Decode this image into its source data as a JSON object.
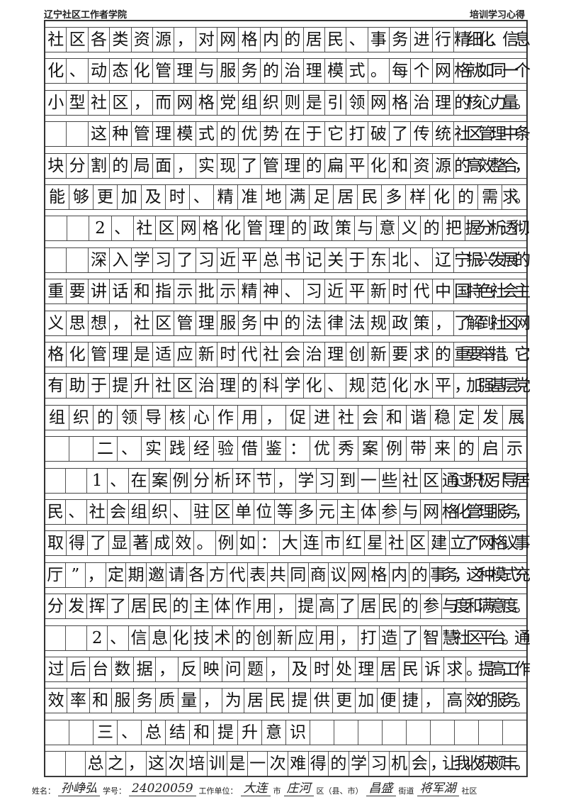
{
  "header": {
    "left": "辽宁社区工作者学院",
    "right": "培训学习心得"
  },
  "lines": [
    "社区各类资源，对网格内的居民、事务进行精细化、信息",
    "化、动态化管理与服务的治理模式。每个网格就如同一个",
    "小型社区，而网格党组织则是引领网格治理的核心力量。",
    "　　这种管理模式的优势在于它打破了传统社区管理中条",
    "块分割的局面，实现了管理的扁平化和资源的高效整合，",
    "能够更加及时、精准地满足居民多样化的需求。",
    "　　2、社区网格化管理的政策与意义的把握分析透彻.",
    "　　深入学习了习近平总书记关于东北、辽宁振兴发展的",
    "重要讲话和指示批示精神、习近平新时代中国特色社会主",
    "义思想，社区管理服务中的法律法规政策，了解到社区网",
    "格化管理是适应新时代社会治理创新要求的重要举措。它",
    "有助于提升社区治理的科学化、规范化水平，加强基层党",
    "组织的领导核心作用，促进社会和谐稳定发展.",
    "　　二、实践经验借鉴：优秀案例带来的启示",
    "　　1、在案例分析环节，学习到一些社区通过积极引导居",
    "民、社会组织、驻区单位等多元主体参与网格化管理服务，",
    "取得了显著成效。例如：大连市红星社区建立了“网格议事",
    "厅”，定期邀请各方代表共同商议网格内的事务，这种模式充",
    "分发挥了居民的主体作用，提高了居民的参与度和满意度。",
    "　　2、信息化技术的创新应用，打造了智慧社区平台。通",
    "过后台数据，反映问题，及时处理居民诉求。提高工作",
    "效率和服务质量，为居民提供更加便捷，高效的服务。",
    "　　三、总结和提升意识",
    "　　总之，这次培训是一次难得的学习机会，让我收获颇丰。"
  ],
  "footer": {
    "name_label": "姓名：",
    "name": "孙峥弘",
    "id_label": "学号：",
    "student_id": "24020059",
    "unit_label": "工作单位：",
    "city": "大连",
    "city_suffix": "市",
    "district": "庄河",
    "district_suffix": "区（县、市）",
    "street": "昌盛",
    "street_suffix": "街道",
    "community": "将军湖",
    "community_suffix": "社区"
  }
}
